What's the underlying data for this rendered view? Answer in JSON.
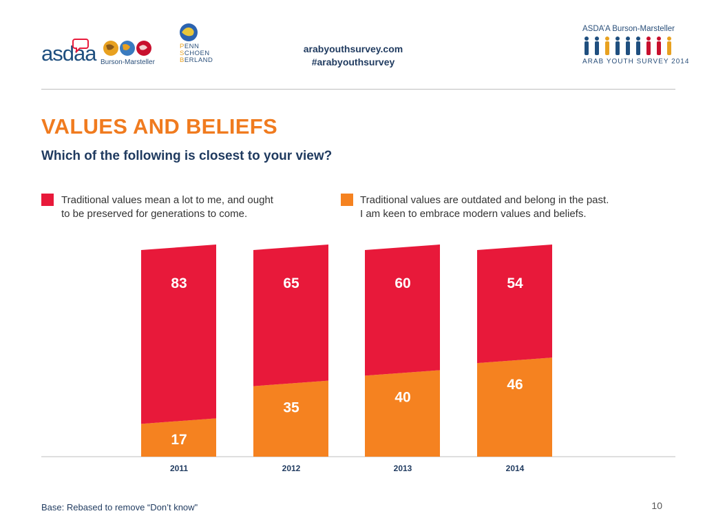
{
  "header": {
    "asdaa_logo": "asdaa",
    "burson_logo": "Burson-Marsteller",
    "psb_logo": [
      "PENN",
      "SCHOEN",
      "BERLAND"
    ],
    "website": "arabyouthsurvey.com",
    "hashtag": "#arabyouthsurvey",
    "ays_brand_top": "ASDA’A Burson-Marsteller",
    "ays_brand_bottom": "ARAB YOUTH SURVEY 2014"
  },
  "slide": {
    "title": "VALUES AND BELIEFS",
    "subtitle": "Which of the following is closest to your view?",
    "footer_note": "Base: Rebased to remove “Don’t know\"",
    "page_number": "10"
  },
  "legend": [
    {
      "line1": "Traditional values mean a lot to me, and ought",
      "line2": "to be preserved for generations to come.",
      "color": "#e8193a"
    },
    {
      "line1": "Traditional values are outdated and belong in the past.",
      "line2": "I am keen to embrace modern values and beliefs.",
      "color": "#f58220"
    }
  ],
  "chart_data": {
    "type": "bar",
    "stacked": true,
    "categories": [
      "2011",
      "2012",
      "2013",
      "2014"
    ],
    "series": [
      {
        "name": "Traditional values mean a lot to me, and ought to be preserved for generations to come.",
        "values": [
          83,
          65,
          60,
          54
        ],
        "color": "#e8193a"
      },
      {
        "name": "Traditional values are outdated and belong in the past. I am keen to embrace modern values and beliefs.",
        "values": [
          17,
          35,
          40,
          46
        ],
        "color": "#f58220"
      }
    ],
    "ylim": [
      0,
      100
    ],
    "grid": false,
    "legend_position": "top"
  }
}
